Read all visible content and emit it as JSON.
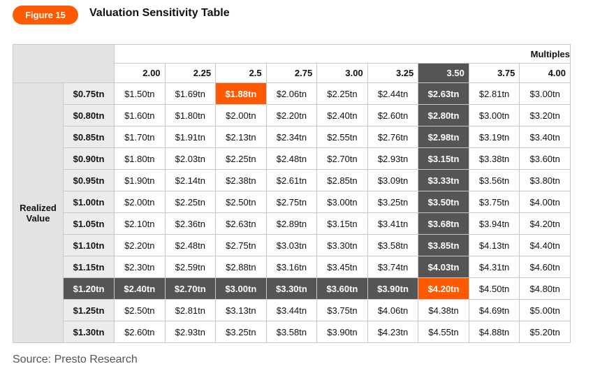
{
  "header": {
    "badge": "Figure 15",
    "title": "Valuation Sensitivity Table"
  },
  "table": {
    "column_group": "Multiples",
    "row_group": "Realized Value",
    "columns": [
      "2.00",
      "2.25",
      "2.5",
      "2.75",
      "3.00",
      "3.25",
      "3.50",
      "3.75",
      "4.00"
    ],
    "rows": [
      [
        "$0.75tn",
        "$1.50tn",
        "$1.69tn",
        "$1.88tn",
        "$2.06tn",
        "$2.25tn",
        "$2.44tn",
        "$2.63tn",
        "$2.81tn",
        "$3.00tn"
      ],
      [
        "$0.80tn",
        "$1.60tn",
        "$1.80tn",
        "$2.00tn",
        "$2.20tn",
        "$2.40tn",
        "$2.60tn",
        "$2.80tn",
        "$3.00tn",
        "$3.20tn"
      ],
      [
        "$0.85tn",
        "$1.70tn",
        "$1.91tn",
        "$2.13tn",
        "$2.34tn",
        "$2.55tn",
        "$2.76tn",
        "$2.98tn",
        "$3.19tn",
        "$3.40tn"
      ],
      [
        "$0.90tn",
        "$1.80tn",
        "$2.03tn",
        "$2.25tn",
        "$2.48tn",
        "$2.70tn",
        "$2.93tn",
        "$3.15tn",
        "$3.38tn",
        "$3.60tn"
      ],
      [
        "$0.95tn",
        "$1.90tn",
        "$2.14tn",
        "$2.38tn",
        "$2.61tn",
        "$2.85tn",
        "$3.09tn",
        "$3.33tn",
        "$3.56tn",
        "$3.80tn"
      ],
      [
        "$1.00tn",
        "$2.00tn",
        "$2.25tn",
        "$2.50tn",
        "$2.75tn",
        "$3.00tn",
        "$3.25tn",
        "$3.50tn",
        "$3.75tn",
        "$4.00tn"
      ],
      [
        "$1.05tn",
        "$2.10tn",
        "$2.36tn",
        "$2.63tn",
        "$2.89tn",
        "$3.15tn",
        "$3.41tn",
        "$3.68tn",
        "$3.94tn",
        "$4.20tn"
      ],
      [
        "$1.10tn",
        "$2.20tn",
        "$2.48tn",
        "$2.75tn",
        "$3.03tn",
        "$3.30tn",
        "$3.58tn",
        "$3.85tn",
        "$4.13tn",
        "$4.40tn"
      ],
      [
        "$1.15tn",
        "$2.30tn",
        "$2.59tn",
        "$2.88tn",
        "$3.16tn",
        "$3.45tn",
        "$3.74tn",
        "$4.03tn",
        "$4.31tn",
        "$4.60tn"
      ],
      [
        "$1.20tn",
        "$2.40tn",
        "$2.70tn",
        "$3.00tn",
        "$3.30tn",
        "$3.60tn",
        "$3.90tn",
        "$4.20tn",
        "$4.50tn",
        "$4.80tn"
      ],
      [
        "$1.25tn",
        "$2.50tn",
        "$2.81tn",
        "$3.13tn",
        "$3.44tn",
        "$3.75tn",
        "$4.06tn",
        "$4.38tn",
        "$4.69tn",
        "$5.00tn"
      ],
      [
        "$1.30tn",
        "$2.60tn",
        "$2.93tn",
        "$3.25tn",
        "$3.58tn",
        "$3.90tn",
        "$4.23tn",
        "$4.55tn",
        "$4.88tn",
        "$5.20tn"
      ]
    ]
  },
  "footer": {
    "source": "Source: Presto Research"
  }
}
